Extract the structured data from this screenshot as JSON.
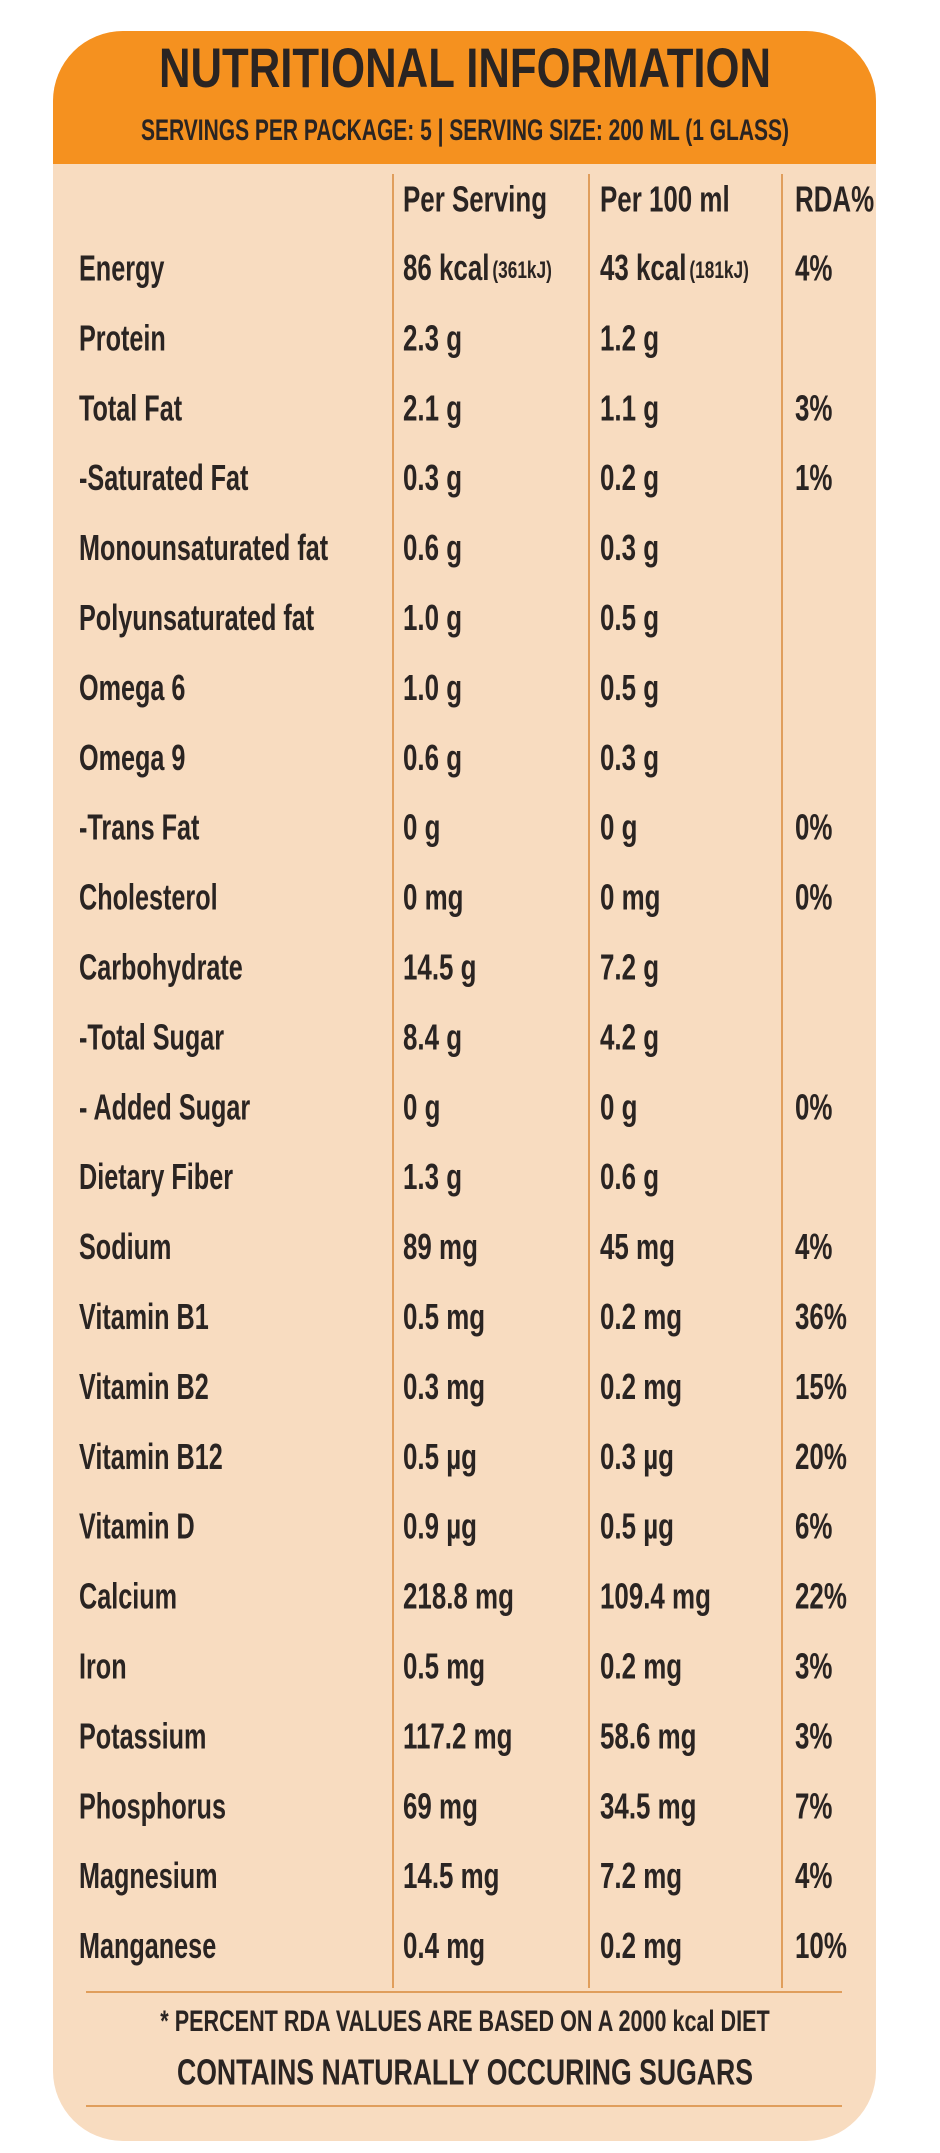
{
  "header": {
    "title": "NUTRITIONAL INFORMATION",
    "subtitle": "SERVINGS PER PACKAGE: 5 | SERVING SIZE: 200 ML (1 GLASS)"
  },
  "table": {
    "columns": [
      "Per Serving",
      "Per 100 ml",
      "RDA%"
    ],
    "rows": [
      [
        "Energy",
        {
          "text": "86 kcal",
          "note": "(361kJ)"
        },
        {
          "text": "43 kcal",
          "note": "(181kJ)"
        },
        "4%"
      ],
      [
        "Protein",
        "2.3 g",
        "1.2 g"
      ],
      [
        "Total Fat",
        "2.1 g",
        "1.1 g",
        "3%"
      ],
      [
        "-Saturated Fat",
        "0.3 g",
        "0.2 g",
        "1%"
      ],
      [
        "Monounsaturated fat",
        "0.6 g",
        "0.3 g"
      ],
      [
        "Polyunsaturated fat",
        "1.0 g",
        "0.5 g"
      ],
      [
        "Omega 6",
        "1.0 g",
        "0.5 g"
      ],
      [
        "Omega 9",
        "0.6 g",
        "0.3 g"
      ],
      [
        "-Trans Fat",
        "0 g",
        "0 g",
        "0%"
      ],
      [
        "Cholesterol",
        "0 mg",
        "0 mg",
        "0%"
      ],
      [
        "Carbohydrate",
        "14.5 g",
        "7.2 g"
      ],
      [
        " -Total Sugar",
        "8.4 g",
        "4.2 g"
      ],
      [
        "- Added Sugar",
        "0 g",
        "0 g",
        "0%"
      ],
      [
        "Dietary Fiber",
        "1.3 g",
        "0.6 g"
      ],
      [
        "Sodium",
        "89 mg",
        "45 mg",
        "4%"
      ],
      [
        "Vitamin B1",
        "0.5 mg",
        "0.2 mg",
        "36%"
      ],
      [
        "Vitamin B2",
        "0.3 mg",
        "0.2 mg",
        "15%"
      ],
      [
        "Vitamin B12",
        "0.5 µg",
        "0.3 µg",
        "20%"
      ],
      [
        "Vitamin D",
        "0.9 µg",
        "0.5 µg",
        "6%"
      ],
      [
        "Calcium",
        "218.8 mg",
        "109.4 mg",
        "22%"
      ],
      [
        "Iron",
        "0.5 mg",
        "0.2 mg",
        "3%"
      ],
      [
        "Potassium",
        "117.2 mg",
        "58.6 mg",
        "3%"
      ],
      [
        "Phosphorus",
        "69 mg",
        "34.5 mg",
        "7%"
      ],
      [
        "Magnesium",
        "14.5 mg",
        "7.2 mg",
        "4%"
      ],
      [
        "Manganese",
        "0.4 mg",
        "0.2 mg",
        "10%"
      ]
    ]
  },
  "footer": {
    "note": "* PERCENT RDA VALUES ARE BASED ON A 2000 kcal DIET",
    "claim": "CONTAINS NATURALLY OCCURING SUGARS"
  }
}
